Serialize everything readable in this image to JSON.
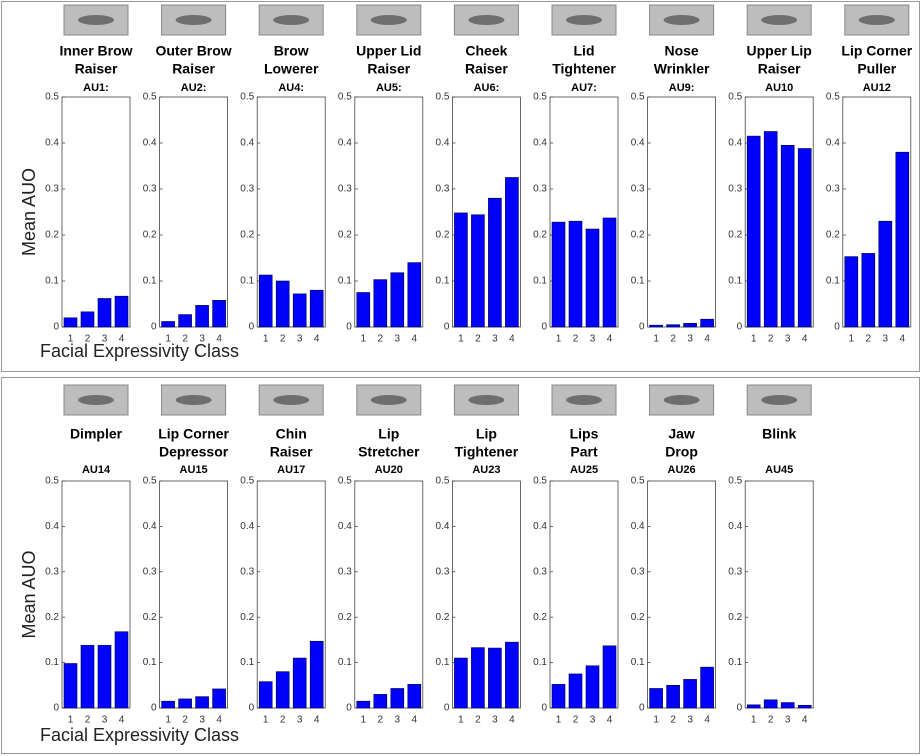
{
  "chart_data": [
    {
      "type": "bar",
      "subtitle": [
        "Inner Brow",
        "Raiser"
      ],
      "title": "AU1:",
      "categories": [
        "1",
        "2",
        "3",
        "4"
      ],
      "values": [
        0.02,
        0.033,
        0.062,
        0.067
      ],
      "color": "#0000ff",
      "ylim": [
        0,
        0.5
      ],
      "yticks": [
        0,
        0.1,
        0.2,
        0.3,
        0.4,
        0.5
      ]
    },
    {
      "type": "bar",
      "subtitle": [
        "Outer Brow",
        "Raiser"
      ],
      "title": "AU2:",
      "categories": [
        "1",
        "2",
        "3",
        "4"
      ],
      "values": [
        0.012,
        0.027,
        0.047,
        0.058
      ],
      "color": "#0000ff",
      "ylim": [
        0,
        0.5
      ],
      "yticks": [
        0,
        0.1,
        0.2,
        0.3,
        0.4,
        0.5
      ]
    },
    {
      "type": "bar",
      "subtitle": [
        "Brow",
        "Lowerer"
      ],
      "title": "AU4:",
      "categories": [
        "1",
        "2",
        "3",
        "4"
      ],
      "values": [
        0.113,
        0.1,
        0.072,
        0.08
      ],
      "color": "#0000ff",
      "ylim": [
        0,
        0.5
      ],
      "yticks": [
        0,
        0.1,
        0.2,
        0.3,
        0.4,
        0.5
      ]
    },
    {
      "type": "bar",
      "subtitle": [
        "Upper Lid",
        "Raiser"
      ],
      "title": "AU5:",
      "categories": [
        "1",
        "2",
        "3",
        "4"
      ],
      "values": [
        0.075,
        0.103,
        0.118,
        0.14
      ],
      "color": "#0000ff",
      "ylim": [
        0,
        0.5
      ],
      "yticks": [
        0,
        0.1,
        0.2,
        0.3,
        0.4,
        0.5
      ]
    },
    {
      "type": "bar",
      "subtitle": [
        "Cheek",
        "Raiser"
      ],
      "title": "AU6:",
      "categories": [
        "1",
        "2",
        "3",
        "4"
      ],
      "values": [
        0.248,
        0.244,
        0.28,
        0.325
      ],
      "color": "#0000ff",
      "ylim": [
        0,
        0.5
      ],
      "yticks": [
        0,
        0.1,
        0.2,
        0.3,
        0.4,
        0.5
      ]
    },
    {
      "type": "bar",
      "subtitle": [
        "Lid",
        "Tightener"
      ],
      "title": "AU7:",
      "categories": [
        "1",
        "2",
        "3",
        "4"
      ],
      "values": [
        0.228,
        0.23,
        0.213,
        0.237
      ],
      "color": "#0000ff",
      "ylim": [
        0,
        0.5
      ],
      "yticks": [
        0,
        0.1,
        0.2,
        0.3,
        0.4,
        0.5
      ]
    },
    {
      "type": "bar",
      "subtitle": [
        "Nose",
        "Wrinkler"
      ],
      "title": "AU9:",
      "categories": [
        "1",
        "2",
        "3",
        "4"
      ],
      "values": [
        0.004,
        0.005,
        0.008,
        0.017
      ],
      "color": "#0000ff",
      "ylim": [
        0,
        0.5
      ],
      "yticks": [
        0,
        0.1,
        0.2,
        0.3,
        0.4,
        0.5
      ]
    },
    {
      "type": "bar",
      "subtitle": [
        "Upper Lip",
        "Raiser"
      ],
      "title": "AU10",
      "categories": [
        "1",
        "2",
        "3",
        "4"
      ],
      "values": [
        0.415,
        0.425,
        0.395,
        0.388
      ],
      "color": "#0000ff",
      "ylim": [
        0,
        0.5
      ],
      "yticks": [
        0,
        0.1,
        0.2,
        0.3,
        0.4,
        0.5
      ]
    },
    {
      "type": "bar",
      "subtitle": [
        "Lip Corner",
        "Puller"
      ],
      "title": "AU12",
      "categories": [
        "1",
        "2",
        "3",
        "4"
      ],
      "values": [
        0.153,
        0.16,
        0.23,
        0.38
      ],
      "color": "#0000ff",
      "ylim": [
        0,
        0.5
      ],
      "yticks": [
        0,
        0.1,
        0.2,
        0.3,
        0.4,
        0.5
      ]
    },
    {
      "type": "bar",
      "subtitle": [
        "Dimpler"
      ],
      "title": "AU14",
      "categories": [
        "1",
        "2",
        "3",
        "4"
      ],
      "values": [
        0.098,
        0.138,
        0.138,
        0.168
      ],
      "color": "#0000ff",
      "ylim": [
        0,
        0.5
      ],
      "yticks": [
        0,
        0.1,
        0.2,
        0.3,
        0.4,
        0.5
      ]
    },
    {
      "type": "bar",
      "subtitle": [
        "Lip Corner",
        "Depressor"
      ],
      "title": "AU15",
      "categories": [
        "1",
        "2",
        "3",
        "4"
      ],
      "values": [
        0.015,
        0.02,
        0.025,
        0.042
      ],
      "color": "#0000ff",
      "ylim": [
        0,
        0.5
      ],
      "yticks": [
        0,
        0.1,
        0.2,
        0.3,
        0.4,
        0.5
      ]
    },
    {
      "type": "bar",
      "subtitle": [
        "Chin",
        "Raiser"
      ],
      "title": "AU17",
      "categories": [
        "1",
        "2",
        "3",
        "4"
      ],
      "values": [
        0.058,
        0.08,
        0.11,
        0.147
      ],
      "color": "#0000ff",
      "ylim": [
        0,
        0.5
      ],
      "yticks": [
        0,
        0.1,
        0.2,
        0.3,
        0.4,
        0.5
      ]
    },
    {
      "type": "bar",
      "subtitle": [
        "Lip",
        "Stretcher"
      ],
      "title": "AU20",
      "categories": [
        "1",
        "2",
        "3",
        "4"
      ],
      "values": [
        0.015,
        0.03,
        0.043,
        0.052
      ],
      "color": "#0000ff",
      "ylim": [
        0,
        0.5
      ],
      "yticks": [
        0,
        0.1,
        0.2,
        0.3,
        0.4,
        0.5
      ]
    },
    {
      "type": "bar",
      "subtitle": [
        "Lip",
        "Tightener"
      ],
      "title": "AU23",
      "categories": [
        "1",
        "2",
        "3",
        "4"
      ],
      "values": [
        0.11,
        0.133,
        0.132,
        0.145
      ],
      "color": "#0000ff",
      "ylim": [
        0,
        0.5
      ],
      "yticks": [
        0,
        0.1,
        0.2,
        0.3,
        0.4,
        0.5
      ]
    },
    {
      "type": "bar",
      "subtitle": [
        "Lips",
        "Part"
      ],
      "title": "AU25",
      "categories": [
        "1",
        "2",
        "3",
        "4"
      ],
      "values": [
        0.052,
        0.075,
        0.093,
        0.137
      ],
      "color": "#0000ff",
      "ylim": [
        0,
        0.5
      ],
      "yticks": [
        0,
        0.1,
        0.2,
        0.3,
        0.4,
        0.5
      ]
    },
    {
      "type": "bar",
      "subtitle": [
        "Jaw",
        "Drop"
      ],
      "title": "AU26",
      "categories": [
        "1",
        "2",
        "3",
        "4"
      ],
      "values": [
        0.043,
        0.05,
        0.063,
        0.09
      ],
      "color": "#0000ff",
      "ylim": [
        0,
        0.5
      ],
      "yticks": [
        0,
        0.1,
        0.2,
        0.3,
        0.4,
        0.5
      ]
    },
    {
      "type": "bar",
      "subtitle": [
        "Blink"
      ],
      "title": "AU45",
      "categories": [
        "1",
        "2",
        "3",
        "4"
      ],
      "values": [
        0.007,
        0.018,
        0.012,
        0.006
      ],
      "color": "#0000ff",
      "ylim": [
        0,
        0.5
      ],
      "yticks": [
        0,
        0.1,
        0.2,
        0.3,
        0.4,
        0.5
      ]
    }
  ],
  "rows": [
    {
      "y_label": "Mean AUO",
      "x_label": "Facial Expressivity Class"
    },
    {
      "y_label": "Mean AUO",
      "x_label": "Facial Expressivity Class"
    }
  ]
}
